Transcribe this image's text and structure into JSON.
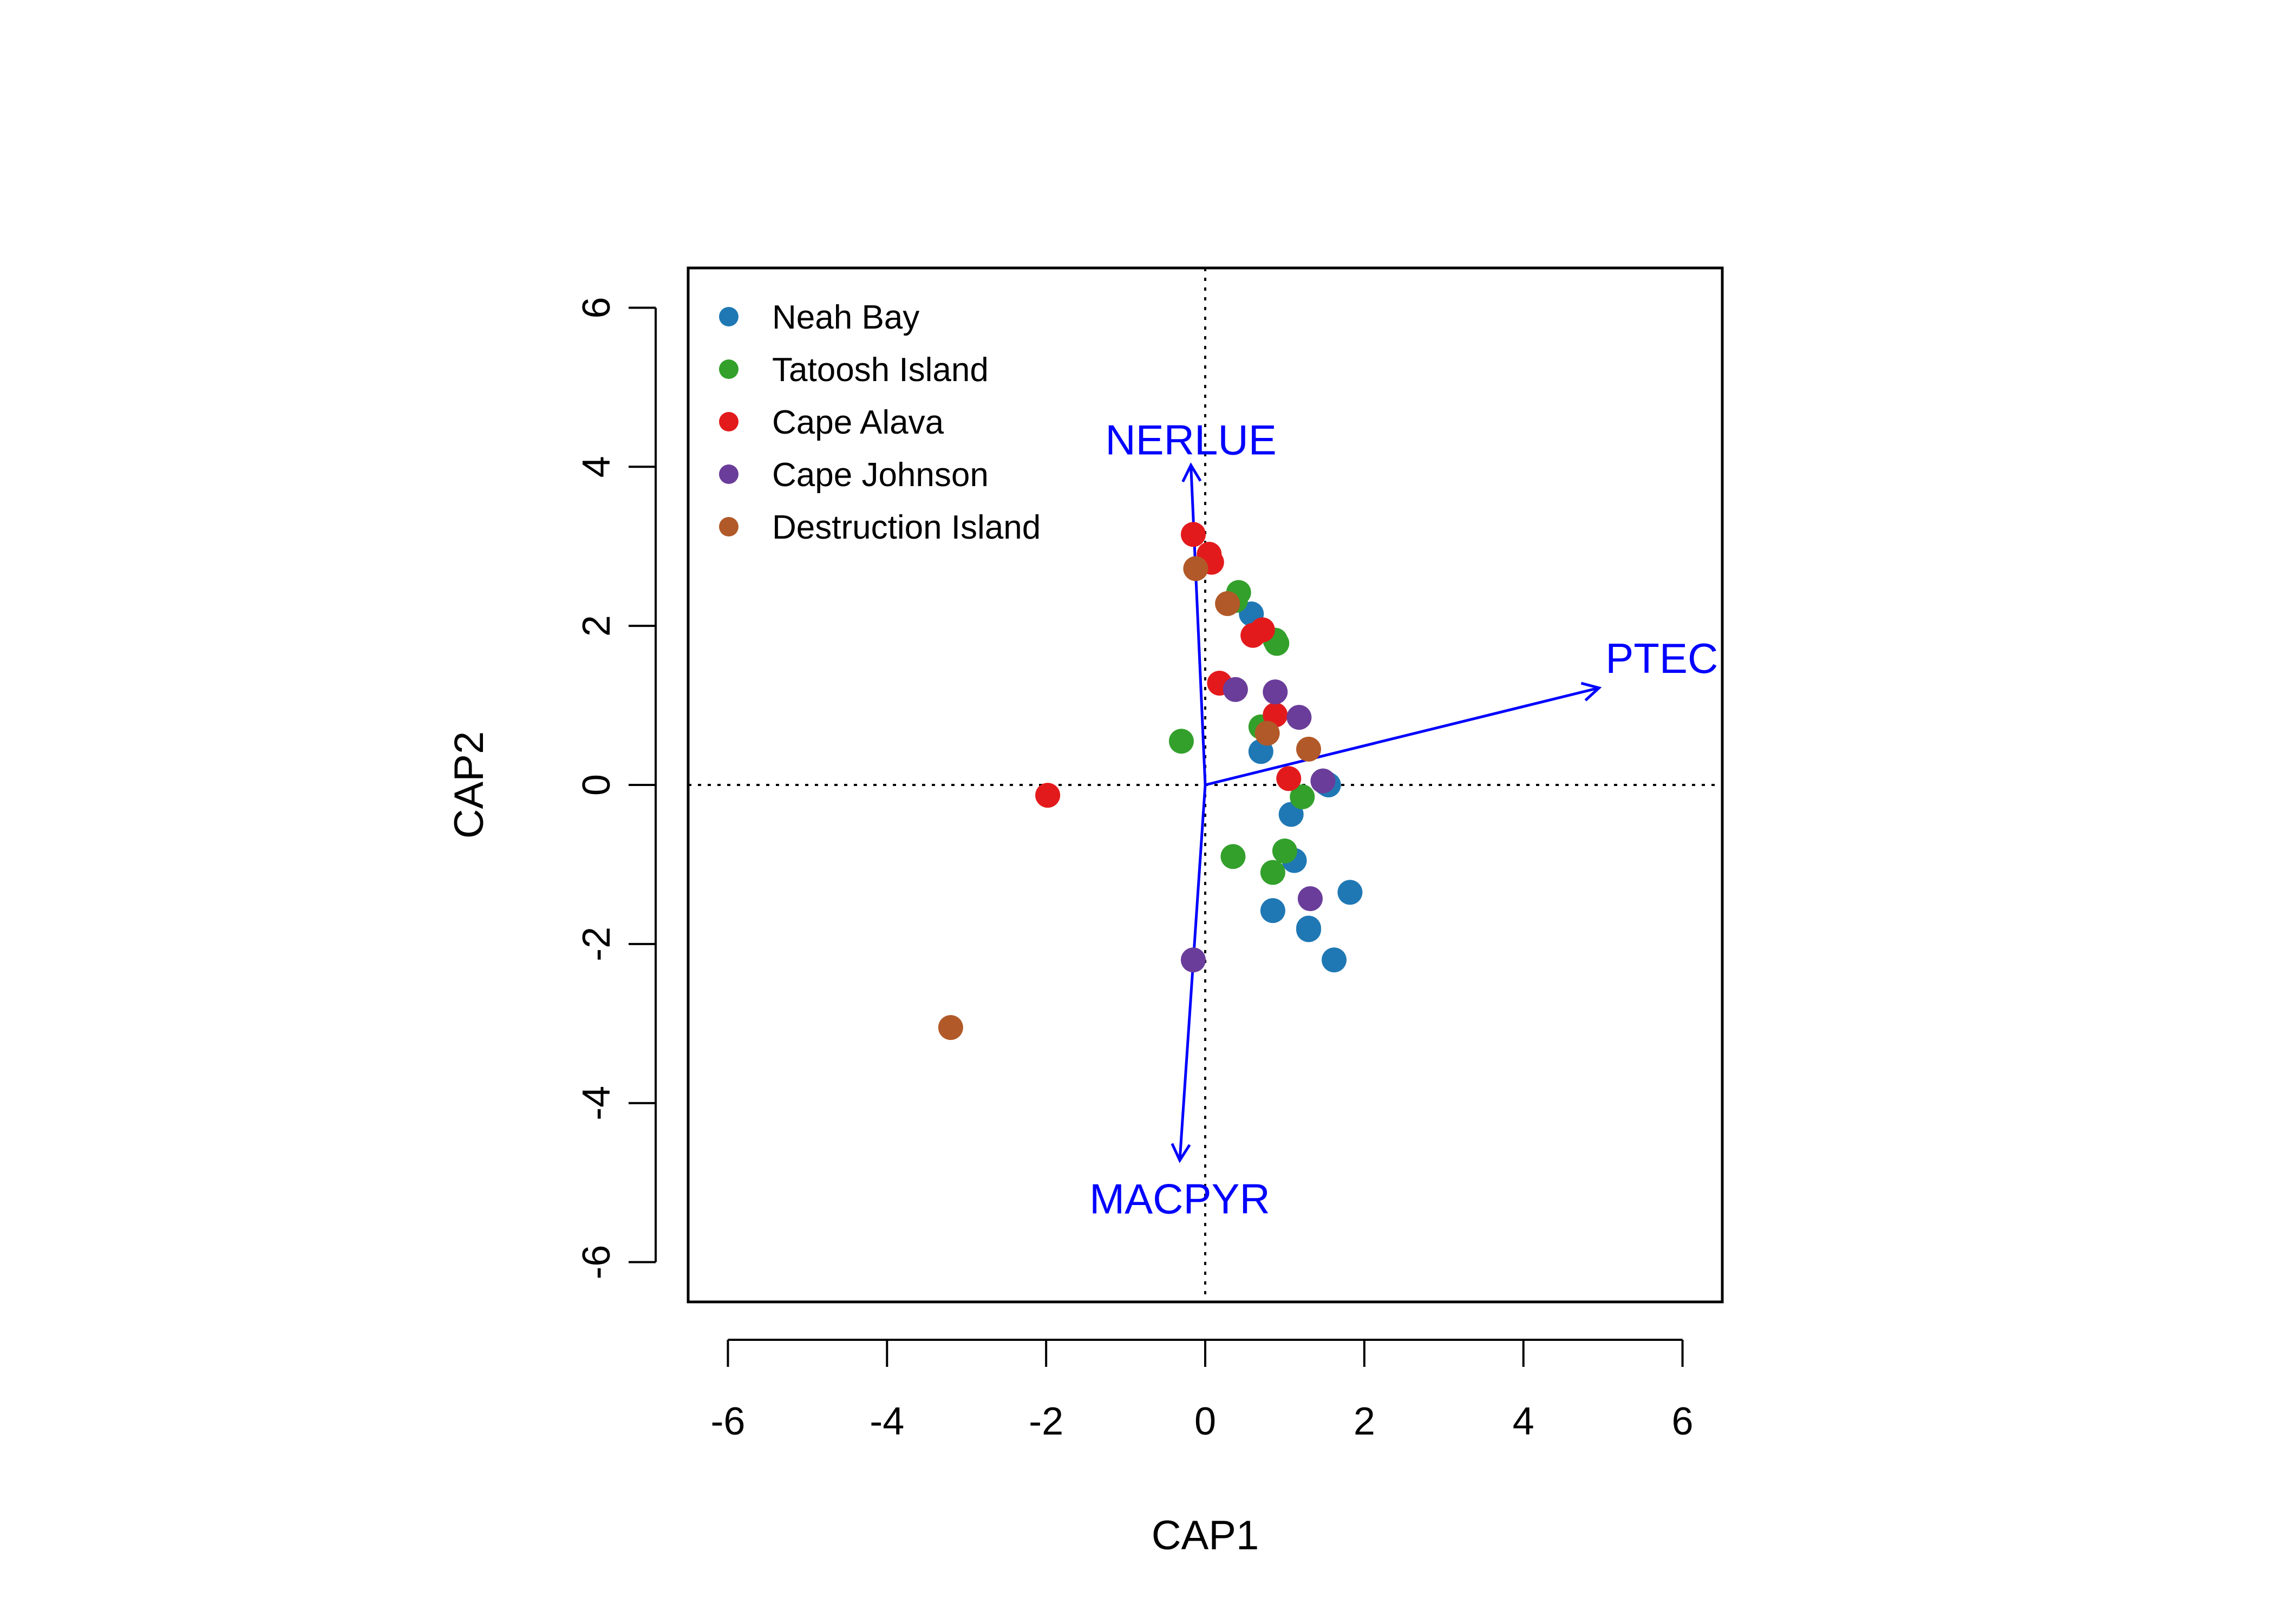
{
  "chart_data": {
    "type": "scatter",
    "title": "",
    "xlabel": "CAP1",
    "ylabel": "CAP2",
    "xlim": [
      -6.5,
      6.5
    ],
    "ylim": [
      -6.5,
      6.5
    ],
    "x_ticks": [
      -6,
      -4,
      -2,
      0,
      2,
      4,
      6
    ],
    "y_ticks": [
      -6,
      -4,
      -2,
      0,
      2,
      4,
      6
    ],
    "x_tick_labels": [
      "-6",
      "-4",
      "-2",
      "0",
      "2",
      "4",
      "6"
    ],
    "y_tick_labels": [
      "-6",
      "-4",
      "-2",
      "0",
      "2",
      "4",
      "6"
    ],
    "reference_lines": {
      "x": 0,
      "y": 0,
      "style": "dotted"
    },
    "grid": false,
    "legend_position": "top-left",
    "series": [
      {
        "name": "Neah Bay",
        "color": "#1f78b4",
        "points": [
          [
            0.58,
            2.15
          ],
          [
            0.7,
            0.42
          ],
          [
            1.08,
            -0.37
          ],
          [
            1.12,
            -0.95
          ],
          [
            0.85,
            -1.58
          ],
          [
            1.3,
            -1.8
          ],
          [
            1.3,
            -1.82
          ],
          [
            1.62,
            -2.2
          ],
          [
            1.82,
            -1.35
          ],
          [
            1.52,
            0.02
          ],
          [
            1.55,
            0.0
          ]
        ]
      },
      {
        "name": "Tatoosh Island",
        "color": "#33a02c",
        "points": [
          [
            0.38,
            2.32
          ],
          [
            0.42,
            2.42
          ],
          [
            0.88,
            1.82
          ],
          [
            0.9,
            1.78
          ],
          [
            0.7,
            0.73
          ],
          [
            -0.3,
            0.55
          ],
          [
            1.22,
            -0.15
          ],
          [
            1.0,
            -0.83
          ],
          [
            0.85,
            -1.1
          ],
          [
            0.35,
            -0.9
          ]
        ]
      },
      {
        "name": "Cape Alava",
        "color": "#e31a1c",
        "points": [
          [
            -0.15,
            3.15
          ],
          [
            0.05,
            2.9
          ],
          [
            0.08,
            2.8
          ],
          [
            0.72,
            1.95
          ],
          [
            0.6,
            1.88
          ],
          [
            0.18,
            1.28
          ],
          [
            0.88,
            0.88
          ],
          [
            1.05,
            0.08
          ],
          [
            -1.98,
            -0.13
          ]
        ]
      },
      {
        "name": "Cape Johnson",
        "color": "#6a3d9a",
        "points": [
          [
            0.38,
            1.2
          ],
          [
            0.88,
            1.17
          ],
          [
            1.18,
            0.85
          ],
          [
            1.48,
            0.05
          ],
          [
            1.32,
            -1.43
          ],
          [
            -0.15,
            -2.2
          ]
        ]
      },
      {
        "name": "Destruction Island",
        "color": "#b15928",
        "points": [
          [
            -0.12,
            2.72
          ],
          [
            0.28,
            2.28
          ],
          [
            0.78,
            0.65
          ],
          [
            1.3,
            0.45
          ],
          [
            -3.2,
            -3.05
          ]
        ]
      }
    ],
    "vectors": [
      {
        "label": "PTEC",
        "x": 4.95,
        "y": 1.22
      },
      {
        "label": "NERLUE",
        "x": -0.18,
        "y": 4.02
      },
      {
        "label": "MACPYR",
        "x": -0.32,
        "y": -4.72
      }
    ],
    "vector_color": "#0000ff"
  }
}
